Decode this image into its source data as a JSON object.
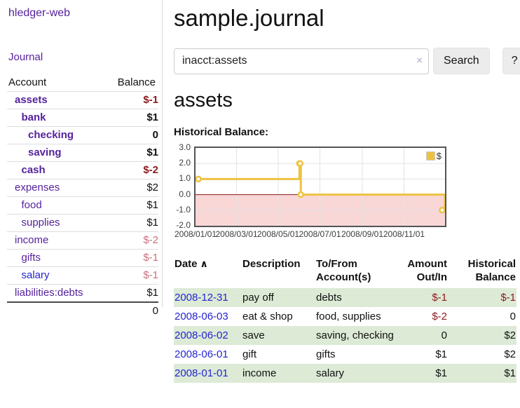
{
  "app": {
    "brand": "hledger-web"
  },
  "colors": {
    "link_purple": "#55229d",
    "link_blue": "#2525cf",
    "negative_strong": "#8b1a1a",
    "negative_soft": "#c9707c",
    "row_stripe_green": "#dcead6",
    "series_yellow": "#edc240"
  },
  "sidebar": {
    "journal_link": "Journal",
    "accounts_table": {
      "headers": {
        "account": "Account",
        "balance": "Balance"
      },
      "rows": [
        {
          "name": "assets",
          "balance": "$-1",
          "level": 0,
          "bold": true,
          "balance_style": "negstrong",
          "link_color": "purple"
        },
        {
          "name": "bank",
          "balance": "$1",
          "level": 1,
          "bold": true,
          "balance_style": "pos",
          "link_color": "purple"
        },
        {
          "name": "checking",
          "balance": "0",
          "level": 2,
          "bold": true,
          "balance_style": "pos",
          "link_color": "purple"
        },
        {
          "name": "saving",
          "balance": "$1",
          "level": 2,
          "bold": true,
          "balance_style": "pos",
          "link_color": "purple"
        },
        {
          "name": "cash",
          "balance": "$-2",
          "level": 1,
          "bold": true,
          "balance_style": "negstrong",
          "link_color": "purple"
        },
        {
          "name": "expenses",
          "balance": "$2",
          "level": 0,
          "bold": false,
          "balance_style": "pos",
          "link_color": "purple"
        },
        {
          "name": "food",
          "balance": "$1",
          "level": 1,
          "bold": false,
          "balance_style": "pos",
          "link_color": "purple"
        },
        {
          "name": "supplies",
          "balance": "$1",
          "level": 1,
          "bold": false,
          "balance_style": "pos",
          "link_color": "purple"
        },
        {
          "name": "income",
          "balance": "$-2",
          "level": 0,
          "bold": false,
          "balance_style": "negsoft",
          "link_color": "purple"
        },
        {
          "name": "gifts",
          "balance": "$-1",
          "level": 1,
          "bold": false,
          "balance_style": "negsoft",
          "link_color": "purple"
        },
        {
          "name": "salary",
          "balance": "$-1",
          "level": 1,
          "bold": false,
          "balance_style": "negsoft",
          "link_color": "blue"
        },
        {
          "name": "liabilities:debts",
          "balance": "$1",
          "level": 0,
          "bold": false,
          "balance_style": "pos",
          "link_color": "purple"
        }
      ],
      "total": "0"
    }
  },
  "main": {
    "title": "sample.journal",
    "search": {
      "value": "inacct:assets",
      "clear_icon": "×",
      "button_label": "Search",
      "help_label": "?"
    },
    "account_heading": "assets",
    "register_table": {
      "headers": {
        "date": "Date",
        "sort_icon": "∧",
        "description": "Description",
        "tofrom_line1": "To/From",
        "tofrom_line2": "Account(s)",
        "amount_line1": "Amount",
        "amount_line2": "Out/In",
        "balance_line1": "Historical",
        "balance_line2": "Balance"
      },
      "rows": [
        {
          "date": "2008-12-31",
          "description": "pay off",
          "accounts": "debts",
          "amount": "$-1",
          "amount_neg": true,
          "balance": "$-1",
          "balance_neg": true
        },
        {
          "date": "2008-06-03",
          "description": "eat & shop",
          "accounts": "food, supplies",
          "amount": "$-2",
          "amount_neg": true,
          "balance": "0",
          "balance_neg": false
        },
        {
          "date": "2008-06-02",
          "description": "save",
          "accounts": "saving, checking",
          "amount": "0",
          "amount_neg": false,
          "balance": "$2",
          "balance_neg": false
        },
        {
          "date": "2008-06-01",
          "description": "gift",
          "accounts": "gifts",
          "amount": "$1",
          "amount_neg": false,
          "balance": "$2",
          "balance_neg": false
        },
        {
          "date": "2008-01-01",
          "description": "income",
          "accounts": "salary",
          "amount": "$1",
          "amount_neg": false,
          "balance": "$1",
          "balance_neg": false
        }
      ]
    }
  },
  "chart_data": {
    "type": "line",
    "title": "Historical Balance:",
    "x_range": [
      "2008-01-01",
      "2008-12-31"
    ],
    "ylim": [
      -2,
      3
    ],
    "yticks": [
      {
        "label": "3.0",
        "value": 3
      },
      {
        "label": "2.0",
        "value": 2
      },
      {
        "label": "1.0",
        "value": 1
      },
      {
        "label": "0.0",
        "value": 0
      },
      {
        "label": "-1.0",
        "value": -1
      },
      {
        "label": "-2.0",
        "value": -2
      }
    ],
    "xticks": [
      {
        "label": "2008/01/01",
        "date": "2008-01-01"
      },
      {
        "label": "2008/03/01",
        "date": "2008-03-01"
      },
      {
        "label": "2008/05/01",
        "date": "2008-05-01"
      },
      {
        "label": "2008/07/01",
        "date": "2008-07-01"
      },
      {
        "label": "2008/09/01",
        "date": "2008-09-01"
      },
      {
        "label": "2008/11/01",
        "date": "2008-11-01"
      }
    ],
    "series": [
      {
        "name": "$",
        "color": "#edc240",
        "step": true,
        "points": [
          {
            "date": "2008-01-01",
            "value": 1
          },
          {
            "date": "2008-06-01",
            "value": 2
          },
          {
            "date": "2008-06-02",
            "value": 2
          },
          {
            "date": "2008-06-03",
            "value": 0
          },
          {
            "date": "2008-12-31",
            "value": -1
          }
        ]
      }
    ],
    "grid": true,
    "legend_position": "top-right",
    "grid_line_color": "#e3e3e3",
    "zero_line_color": "#871414",
    "negative_region_fill": "#f9d7d7",
    "border_color": "#545454"
  }
}
